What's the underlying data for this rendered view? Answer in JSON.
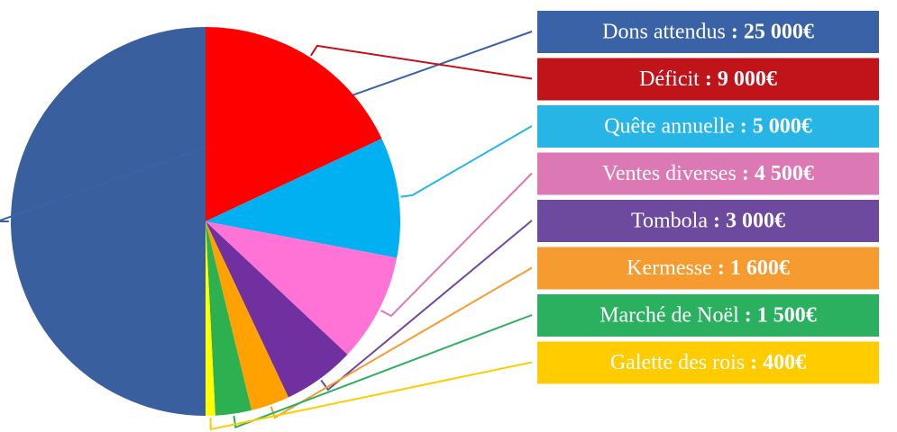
{
  "chart_data": {
    "type": "pie",
    "categories": [
      "Dons attendus",
      "Déficit",
      "Quête annuelle",
      "Ventes diverses",
      "Tombola",
      "Kermesse",
      "Marché de Noël",
      "Galette des rois"
    ],
    "values": [
      25000,
      9000,
      5000,
      4500,
      3000,
      1600,
      1500,
      400
    ],
    "value_labels": [
      "25 000€",
      "9 000€",
      "5 000€",
      "4 500€",
      "3 000€",
      "1 600€",
      "1 500€",
      "400€"
    ],
    "label_separator": " : ",
    "colors": [
      "#3a5f9e",
      "#ff0000",
      "#00b0f0",
      "#ff73d6",
      "#7030a0",
      "#ffa200",
      "#2db050",
      "#ffff00"
    ],
    "label_colors": [
      "#3a62a6",
      "#c0131a",
      "#27b5e6",
      "#dc78b4",
      "#6e4a9e",
      "#f59b2f",
      "#2bb060",
      "#ffcc00"
    ],
    "start_angle": 180
  }
}
